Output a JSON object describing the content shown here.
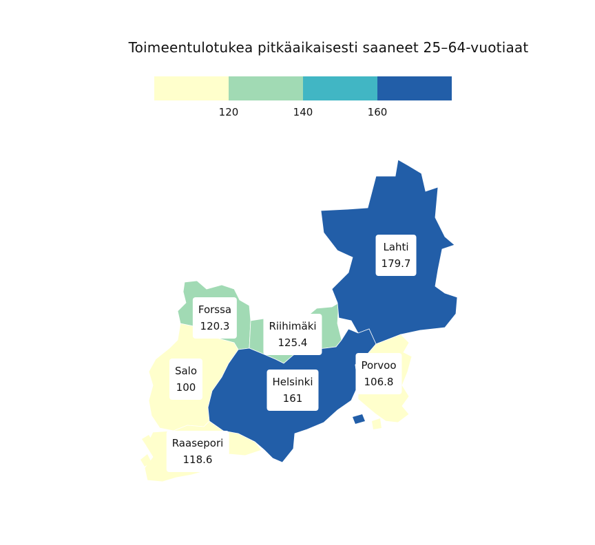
{
  "title": "Toimeentulotukea pitkäaikaisesti saaneet 25–64-vuotiaat",
  "legend": {
    "colors": [
      "#ffffcc",
      "#a1dab4",
      "#41b6c4",
      "#225ea8"
    ],
    "ticks": [
      "120",
      "140",
      "160"
    ]
  },
  "regions": [
    {
      "name": "Lahti",
      "value": "179.7",
      "color": "#225ea8"
    },
    {
      "name": "Forssa",
      "value": "120.3",
      "color": "#a1dab4"
    },
    {
      "name": "Riihimäki",
      "value": "125.4",
      "color": "#a1dab4"
    },
    {
      "name": "Salo",
      "value": "100",
      "color": "#ffffcc"
    },
    {
      "name": "Porvoo",
      "value": "106.8",
      "color": "#ffffcc"
    },
    {
      "name": "Helsinki",
      "value": "161",
      "color": "#225ea8"
    },
    {
      "name": "Raasepori",
      "value": "118.6",
      "color": "#ffffcc"
    }
  ]
}
